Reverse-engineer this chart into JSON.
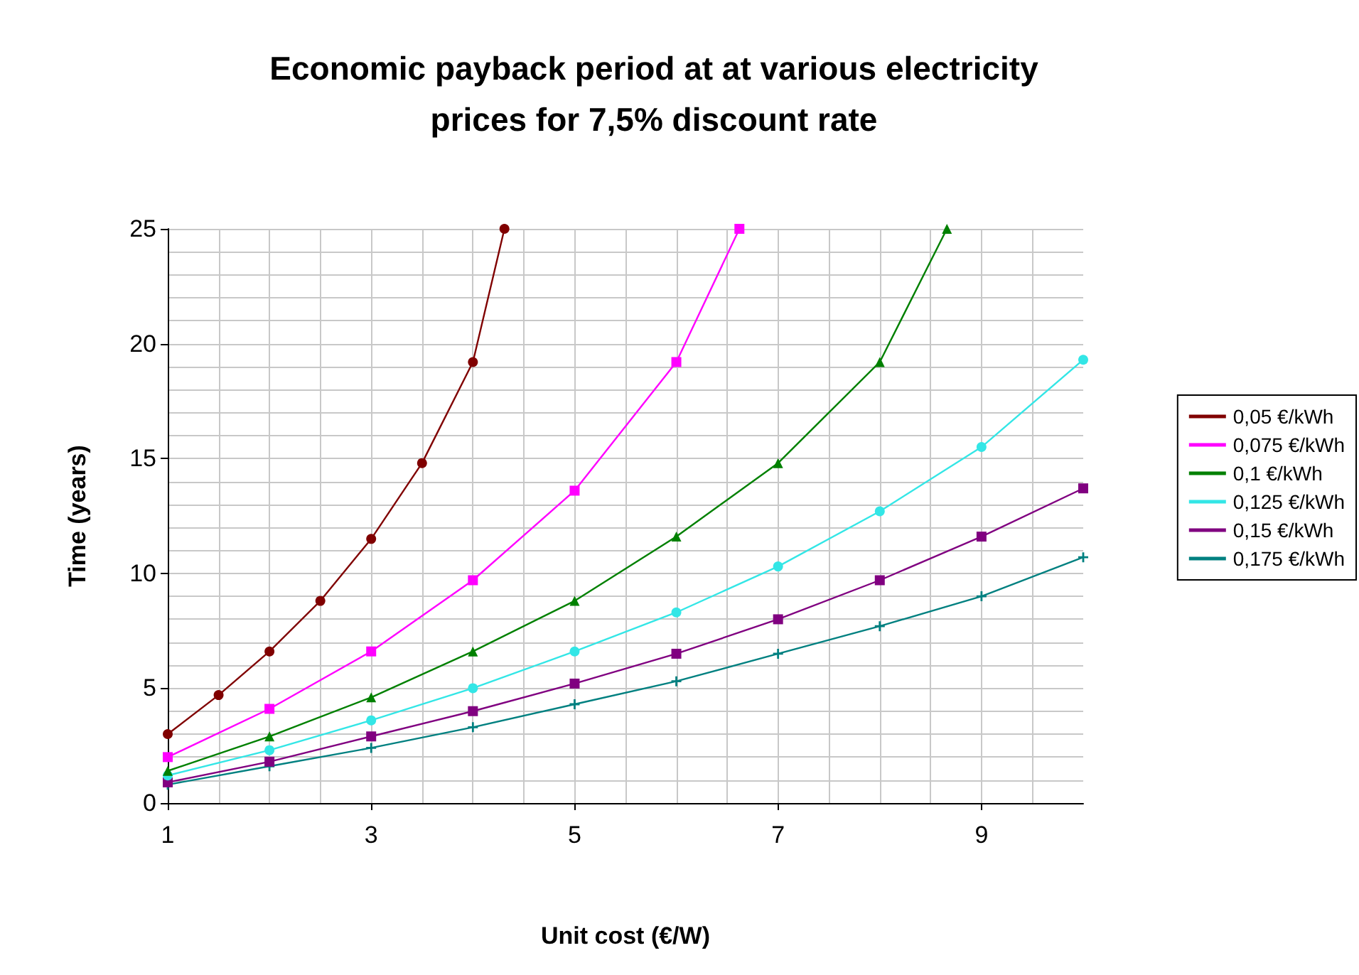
{
  "chart_data": {
    "type": "line",
    "title": "Economic payback period at at various electricity\nprices for 7,5% discount rate",
    "xlabel": "Unit cost (€/W)",
    "ylabel": "Time (years)",
    "xlim": [
      1,
      10
    ],
    "xticks": [
      1,
      3,
      5,
      7,
      9
    ],
    "ylim": [
      0,
      25
    ],
    "yticks": [
      0,
      5,
      10,
      15,
      20,
      25
    ],
    "grid": true,
    "legend": "right",
    "line_style": "solid",
    "series": [
      {
        "name": "0,05 €/kWh",
        "color": "#800000",
        "marker": "circle",
        "x": [
          1,
          1.5,
          2,
          2.5,
          3,
          3.5,
          4,
          4.31
        ],
        "values": [
          3.0,
          4.7,
          6.6,
          8.8,
          11.5,
          14.8,
          19.2,
          25
        ]
      },
      {
        "name": "0,075 €/kWh",
        "color": "#ff00ff",
        "marker": "square",
        "x": [
          1,
          2,
          3,
          4,
          5,
          6,
          6.62
        ],
        "values": [
          2.0,
          4.1,
          6.6,
          9.7,
          13.6,
          19.2,
          25
        ]
      },
      {
        "name": "0,1 €/kWh",
        "color": "#008000",
        "marker": "triangle",
        "x": [
          1,
          2,
          3,
          4,
          5,
          6,
          7,
          8,
          8.66
        ],
        "values": [
          1.4,
          2.9,
          4.6,
          6.6,
          8.8,
          11.6,
          14.8,
          19.2,
          25
        ]
      },
      {
        "name": "0,125 €/kWh",
        "color": "#33e6e6",
        "marker": "circle",
        "x": [
          1,
          2,
          3,
          4,
          5,
          6,
          7,
          8,
          9,
          10
        ],
        "values": [
          1.2,
          2.3,
          3.6,
          5.0,
          6.6,
          8.3,
          10.3,
          12.7,
          15.5,
          19.3
        ]
      },
      {
        "name": "0,15 €/kWh",
        "color": "#800080",
        "marker": "square",
        "x": [
          1,
          2,
          3,
          4,
          5,
          6,
          7,
          8,
          9,
          10
        ],
        "values": [
          0.9,
          1.8,
          2.9,
          4.0,
          5.2,
          6.5,
          8.0,
          9.7,
          11.6,
          13.7
        ]
      },
      {
        "name": "0,175 €/kWh",
        "color": "#008080",
        "marker": "cross",
        "x": [
          1,
          2,
          3,
          4,
          5,
          6,
          7,
          8,
          9,
          10
        ],
        "values": [
          0.8,
          1.6,
          2.4,
          3.3,
          4.3,
          5.3,
          6.5,
          7.7,
          9.0,
          10.7
        ]
      }
    ]
  }
}
